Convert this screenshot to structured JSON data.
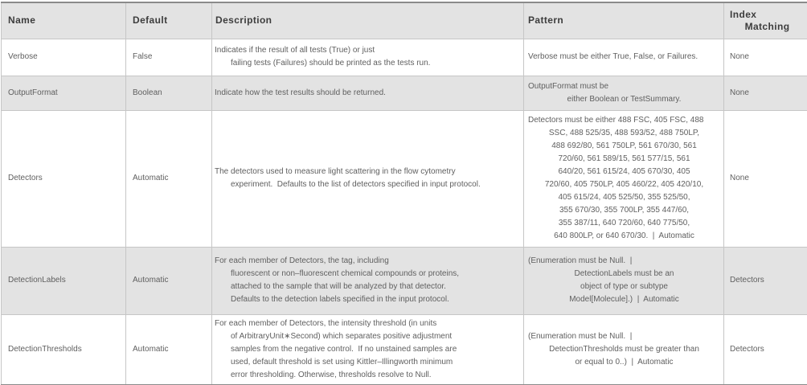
{
  "table": {
    "columns": [
      {
        "key": "name",
        "label_lines": [
          "Name"
        ]
      },
      {
        "key": "default",
        "label_lines": [
          "Default"
        ]
      },
      {
        "key": "description",
        "label_lines": [
          "Description"
        ]
      },
      {
        "key": "pattern",
        "label_lines": [
          "Pattern"
        ]
      },
      {
        "key": "index_matching",
        "label_lines": [
          "Index",
          "Matching"
        ]
      }
    ],
    "rows": [
      {
        "name": "Verbose",
        "default": "False",
        "description": [
          "Indicates if the result of all tests (True) or just",
          "failing tests (Failures) should be printed as the tests run."
        ],
        "pattern": [
          "Verbose must be either True, False, or Failures."
        ],
        "index_matching": "None"
      },
      {
        "name": "OutputFormat",
        "default": "Boolean",
        "description": [
          "Indicate how the test results should be returned."
        ],
        "pattern": [
          "OutputFormat must be",
          "either Boolean or TestSummary."
        ],
        "index_matching": "None"
      },
      {
        "name": "Detectors",
        "default": "Automatic",
        "description": [
          "The detectors used to measure light scattering in the flow cytometry",
          "experiment.  Defaults to the list of detectors specified in input protocol."
        ],
        "pattern": [
          "Detectors must be either 488 FSC, 405 FSC, 488",
          "SSC, 488 525/35, 488 593/52, 488 750LP,",
          "488 692/80, 561 750LP, 561 670/30, 561",
          "720/60, 561 589/15, 561 577/15, 561",
          "640/20, 561 615/24, 405 670/30, 405",
          "720/60, 405 750LP, 405 460/22, 405 420/10,",
          "405 615/24, 405 525/50, 355 525/50,",
          "355 670/30, 355 700LP, 355 447/60,",
          "355 387/11, 640 720/60, 640 775/50,",
          "640 800LP, or 640 670/30.  |  Automatic"
        ],
        "index_matching": "None"
      },
      {
        "name": "DetectionLabels",
        "default": "Automatic",
        "description": [
          "For each member of Detectors, the tag, including",
          "fluorescent or non–fluorescent chemical compounds or proteins,",
          "attached to the sample that will be analyzed by that detector.",
          "Defaults to the detection labels specified in the input protocol."
        ],
        "pattern": [
          "(Enumeration must be Null.  |",
          "DetectionLabels must be an",
          "object of type or subtype",
          "Model[Molecule].)  |  Automatic"
        ],
        "index_matching": "Detectors"
      },
      {
        "name": "DetectionThresholds",
        "default": "Automatic",
        "description": [
          "For each member of Detectors, the intensity threshold (in units",
          "of ArbitraryUnit∗Second) which separates positive adjustment",
          "samples from the negative control.  If no unstained samples are",
          "used, default threshold is set using Kittler–Illingworth minimum",
          "error thresholding. Otherwise, thresholds resolve to Null."
        ],
        "pattern": [
          "(Enumeration must be Null.  |",
          "DetectionThresholds must be greater than",
          "or equal to 0..)  |  Automatic"
        ],
        "index_matching": "Detectors"
      }
    ]
  },
  "colors": {
    "header_bg": "#e3e3e3",
    "shaded_row_bg": "#e3e3e3",
    "row_bg": "#ffffff",
    "border": "#c6c6c6",
    "outer_border": "#8a8a8a",
    "header_text": "#3d3d3d",
    "body_text": "#5f5f5f"
  }
}
